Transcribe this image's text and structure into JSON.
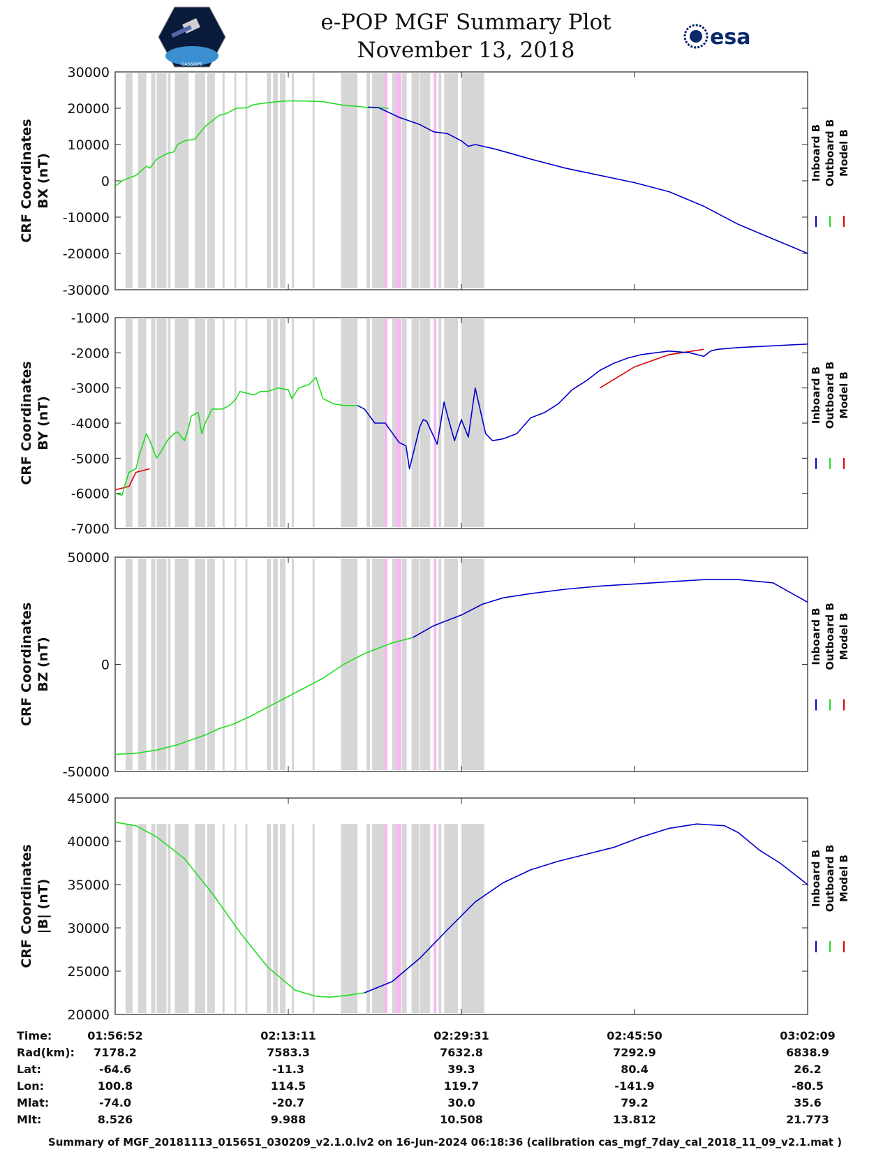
{
  "header": {
    "title": "e-POP MGF Summary Plot",
    "date": "November 13, 2018",
    "esa_logo_text": "esa",
    "left_logo_text": "CASSIOPE"
  },
  "colors": {
    "inboard": "#0000cc",
    "outboard": "#22dd22",
    "model": "#dd0000",
    "shade_gray": "#d6d6d6",
    "shade_pink": "#f5b8f0"
  },
  "legend": {
    "inboard": "Inboard B",
    "outboard": "Outboard B",
    "model": "Model B"
  },
  "shading": {
    "gray": [
      [
        0.015,
        0.025
      ],
      [
        0.033,
        0.045
      ],
      [
        0.052,
        0.058
      ],
      [
        0.06,
        0.074
      ],
      [
        0.076,
        0.08
      ],
      [
        0.086,
        0.106
      ],
      [
        0.115,
        0.13
      ],
      [
        0.133,
        0.144
      ],
      [
        0.155,
        0.158
      ],
      [
        0.172,
        0.175
      ],
      [
        0.188,
        0.191
      ],
      [
        0.219,
        0.225
      ],
      [
        0.228,
        0.235
      ],
      [
        0.238,
        0.246
      ],
      [
        0.255,
        0.258
      ],
      [
        0.285,
        0.288
      ],
      [
        0.326,
        0.35
      ],
      [
        0.363,
        0.368
      ],
      [
        0.371,
        0.389
      ],
      [
        0.4,
        0.405
      ],
      [
        0.414,
        0.421
      ],
      [
        0.428,
        0.439
      ],
      [
        0.44,
        0.455
      ],
      [
        0.467,
        0.471
      ],
      [
        0.475,
        0.495
      ],
      [
        0.5,
        0.533
      ]
    ],
    "pink": [
      [
        0.389,
        0.393
      ],
      [
        0.405,
        0.413
      ],
      [
        0.46,
        0.464
      ]
    ]
  },
  "chart_data": [
    {
      "type": "line",
      "ylabel_1": "CRF Coordinates",
      "ylabel_2": "BX (nT)",
      "ylim": [
        -30000,
        30000
      ],
      "yticks": [
        "30000",
        "20000",
        "10000",
        "0",
        "-10000",
        "-20000",
        "-30000"
      ],
      "ytick_values": [
        30000,
        20000,
        10000,
        0,
        -10000,
        -20000,
        -30000
      ],
      "outboard_x": [
        0,
        0.01,
        0.02,
        0.03,
        0.045,
        0.05,
        0.06,
        0.075,
        0.085,
        0.09,
        0.1,
        0.115,
        0.13,
        0.14,
        0.15,
        0.16,
        0.175,
        0.19,
        0.2,
        0.22,
        0.235,
        0.25,
        0.27,
        0.3,
        0.33,
        0.35,
        0.365,
        0.395
      ],
      "outboard_y": [
        -1500,
        0,
        800,
        1500,
        4000,
        3500,
        6000,
        7500,
        8000,
        10000,
        11000,
        11500,
        15000,
        16500,
        18000,
        18500,
        20000,
        20100,
        21000,
        21500,
        21800,
        22000,
        22000,
        21800,
        20800,
        20500,
        20200,
        20000
      ],
      "inboard_x": [
        0.365,
        0.38,
        0.41,
        0.44,
        0.46,
        0.48,
        0.5,
        0.51,
        0.52,
        0.55,
        0.6,
        0.65,
        0.7,
        0.75,
        0.8,
        0.85,
        0.9,
        0.95,
        1.0
      ],
      "inboard_y": [
        20300,
        20200,
        17500,
        15500,
        13500,
        13000,
        11000,
        9500,
        10000,
        8700,
        6000,
        3500,
        1500,
        -500,
        -3000,
        -7000,
        -12000,
        -16000,
        -20000
      ]
    },
    {
      "type": "line",
      "ylabel_1": "CRF Coordinates",
      "ylabel_2": "BY (nT)",
      "ylim": [
        -7000,
        -1000
      ],
      "yticks": [
        "-1000",
        "-2000",
        "-3000",
        "-4000",
        "-5000",
        "-6000",
        "-7000"
      ],
      "ytick_values": [
        -1000,
        -2000,
        -3000,
        -4000,
        -5000,
        -6000,
        -7000
      ],
      "outboard_x": [
        0,
        0.01,
        0.015,
        0.02,
        0.03,
        0.035,
        0.045,
        0.05,
        0.06,
        0.065,
        0.075,
        0.085,
        0.09,
        0.1,
        0.105,
        0.11,
        0.12,
        0.125,
        0.13,
        0.14,
        0.155,
        0.165,
        0.175,
        0.18,
        0.19,
        0.2,
        0.21,
        0.22,
        0.235,
        0.25,
        0.255,
        0.265,
        0.28,
        0.29,
        0.3,
        0.315,
        0.33,
        0.35
      ],
      "outboard_y": [
        -6000,
        -6050,
        -5700,
        -5400,
        -5300,
        -4900,
        -4300,
        -4500,
        -5000,
        -4850,
        -4500,
        -4300,
        -4250,
        -4500,
        -4200,
        -3800,
        -3700,
        -4300,
        -4000,
        -3600,
        -3600,
        -3500,
        -3300,
        -3100,
        -3150,
        -3200,
        -3100,
        -3100,
        -3000,
        -3050,
        -3300,
        -3000,
        -2900,
        -2700,
        -3300,
        -3450,
        -3500,
        -3500
      ],
      "model_x": [
        0,
        0.02,
        0.03,
        0.05
      ],
      "model_y": [
        -5900,
        -5800,
        -5400,
        -5300
      ],
      "inboard_x": [
        0.35,
        0.36,
        0.375,
        0.39,
        0.41,
        0.42,
        0.425,
        0.44,
        0.445,
        0.45,
        0.465,
        0.475,
        0.48,
        0.49,
        0.5,
        0.51,
        0.52,
        0.535,
        0.545,
        0.56,
        0.58,
        0.6,
        0.62,
        0.64,
        0.66,
        0.68,
        0.7,
        0.72,
        0.74,
        0.76,
        0.78,
        0.8,
        0.83,
        0.85,
        0.86,
        0.87,
        0.9,
        0.95,
        1.0
      ],
      "inboard_y": [
        -3500,
        -3600,
        -4000,
        -4000,
        -4550,
        -4650,
        -5300,
        -4100,
        -3900,
        -3950,
        -4600,
        -3400,
        -3800,
        -4500,
        -3900,
        -4400,
        -3000,
        -4300,
        -4500,
        -4450,
        -4300,
        -3850,
        -3700,
        -3450,
        -3050,
        -2800,
        -2500,
        -2300,
        -2150,
        -2050,
        -2000,
        -1950,
        -2000,
        -2100,
        -1950,
        -1900,
        -1850,
        -1800,
        -1750
      ],
      "model_x2": [
        0.7,
        0.75,
        0.8,
        0.85
      ],
      "model_y2": [
        -3000,
        -2400,
        -2050,
        -1900
      ]
    },
    {
      "type": "line",
      "ylabel_1": "CRF Coordinates",
      "ylabel_2": "BZ (nT)",
      "ylim": [
        -50000,
        50000
      ],
      "yticks": [
        "50000",
        "0",
        "-50000"
      ],
      "ytick_values": [
        50000,
        0,
        -50000
      ],
      "outboard_x": [
        0,
        0.03,
        0.06,
        0.09,
        0.13,
        0.15,
        0.17,
        0.2,
        0.22,
        0.25,
        0.3,
        0.33,
        0.36,
        0.4,
        0.43
      ],
      "outboard_y": [
        -42000,
        -41500,
        -40000,
        -37500,
        -33000,
        -30000,
        -28000,
        -23500,
        -20000,
        -15000,
        -6500,
        0,
        5000,
        10000,
        12500
      ],
      "inboard_x": [
        0.43,
        0.46,
        0.5,
        0.53,
        0.56,
        0.6,
        0.65,
        0.7,
        0.75,
        0.8,
        0.85,
        0.9,
        0.95,
        1.0
      ],
      "inboard_y": [
        12500,
        18000,
        23000,
        28000,
        31000,
        33000,
        35000,
        36500,
        37500,
        38500,
        39500,
        39500,
        38000,
        29000
      ]
    },
    {
      "type": "line",
      "ylabel_1": "CRF Coordinates",
      "ylabel_2": "|B| (nT)",
      "ylim": [
        20000,
        45000
      ],
      "yticks": [
        "45000",
        "40000",
        "35000",
        "30000",
        "25000",
        "20000"
      ],
      "ytick_values": [
        45000,
        40000,
        35000,
        30000,
        25000,
        20000
      ],
      "outboard_x": [
        0,
        0.03,
        0.06,
        0.1,
        0.14,
        0.18,
        0.22,
        0.26,
        0.29,
        0.31,
        0.335,
        0.36
      ],
      "outboard_y": [
        42200,
        41800,
        40500,
        38000,
        34000,
        29500,
        25500,
        22800,
        22100,
        22000,
        22200,
        22500
      ],
      "inboard_x": [
        0.36,
        0.4,
        0.44,
        0.48,
        0.52,
        0.56,
        0.6,
        0.64,
        0.68,
        0.72,
        0.76,
        0.8,
        0.84,
        0.88,
        0.9,
        0.93,
        0.96,
        1.0
      ],
      "inboard_y": [
        22500,
        23800,
        26500,
        29800,
        33000,
        35200,
        36700,
        37700,
        38500,
        39300,
        40500,
        41500,
        42000,
        41800,
        41000,
        39000,
        37500,
        35000
      ]
    }
  ],
  "footer": {
    "labels": [
      "Time:",
      "Rad(km):",
      "Lat:",
      "Lon:",
      "Mlat:",
      "Mlt:"
    ],
    "columns": [
      [
        "01:56:52",
        "7178.2",
        "-64.6",
        "100.8",
        "-74.0",
        "8.526"
      ],
      [
        "02:13:11",
        "7583.3",
        "-11.3",
        "114.5",
        "-20.7",
        "9.988"
      ],
      [
        "02:29:31",
        "7632.8",
        "39.3",
        "119.7",
        "30.0",
        "10.508"
      ],
      [
        "02:45:50",
        "7292.9",
        "80.4",
        "-141.9",
        "79.2",
        "13.812"
      ],
      [
        "03:02:09",
        "6838.9",
        "26.2",
        "-80.5",
        "35.6",
        "21.773"
      ]
    ],
    "note": "Summary of MGF_20181113_015651_030209_v2.1.0.lv2 on 16-Jun-2024 06:18:36 (calibration cas_mgf_7day_cal_2018_11_09_v2.1.mat )"
  }
}
